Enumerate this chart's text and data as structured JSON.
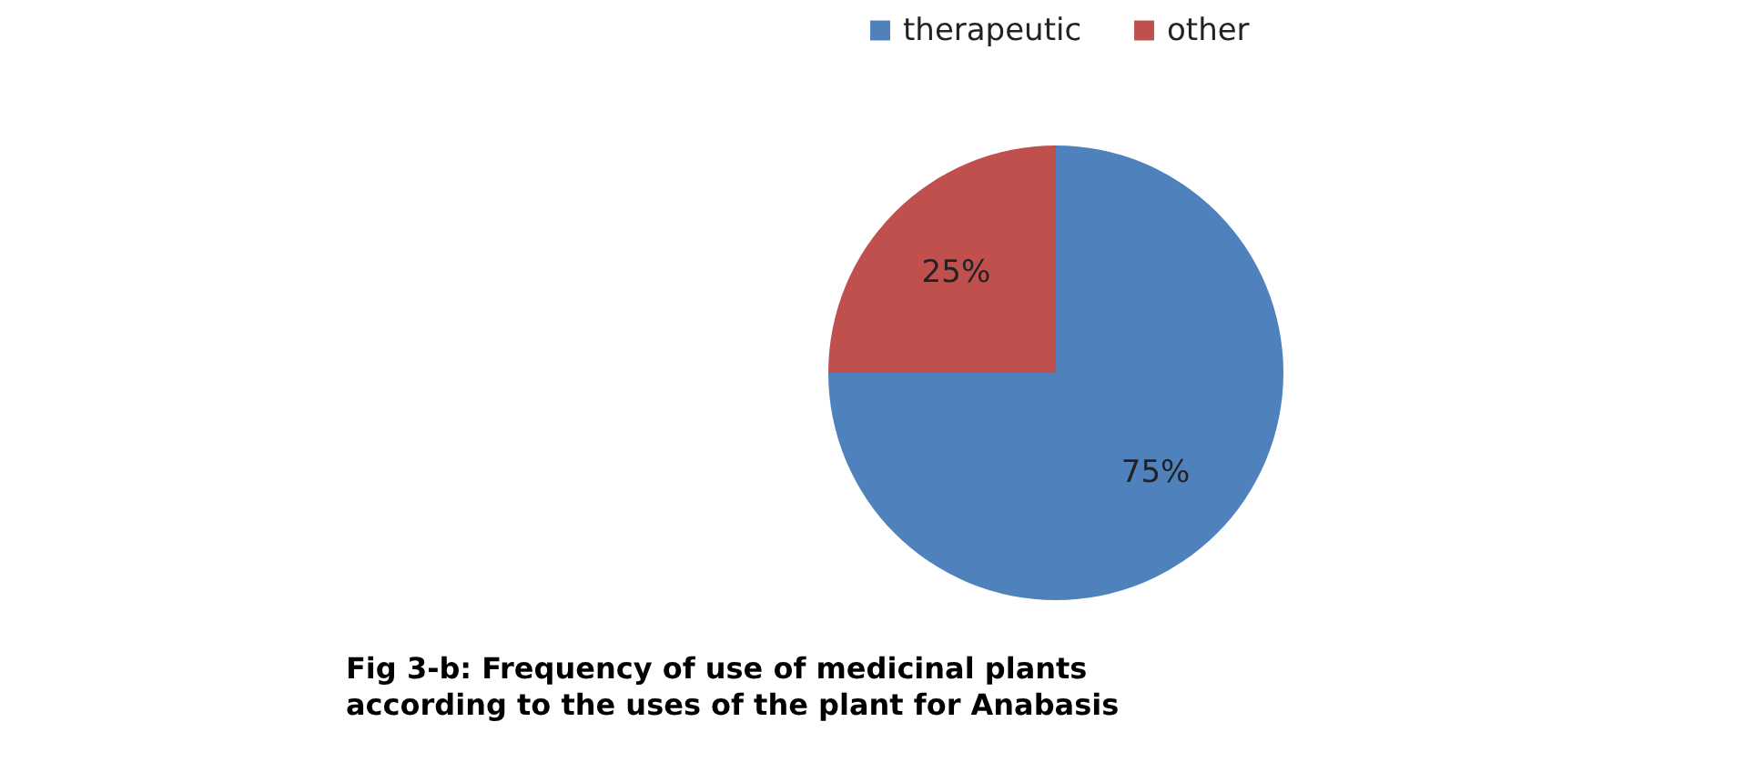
{
  "chart_data": {
    "type": "pie",
    "title": "Fig 3-b: Frequency of use of medicinal plants\naccording  to the uses of the plant for Anabasis",
    "categories": [
      "therapeutic",
      "other"
    ],
    "values": [
      75,
      25
    ],
    "colors": [
      "#4f81bd",
      "#c0504d"
    ],
    "value_labels": [
      "75%",
      "25%"
    ],
    "legend": "top"
  }
}
